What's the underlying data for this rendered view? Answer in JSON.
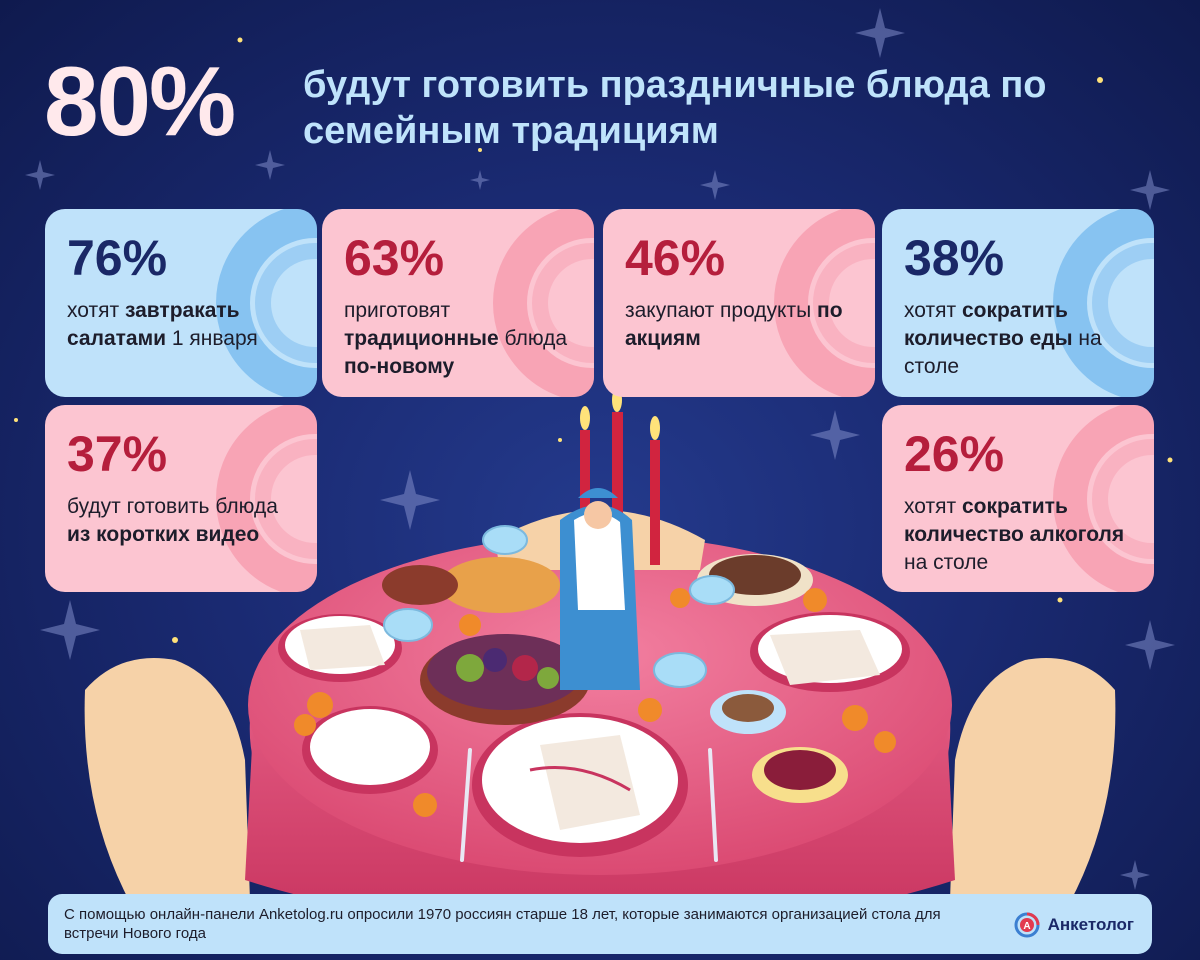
{
  "headline": {
    "percent": "80%",
    "text": "будут готовить праздничные блюда по семейным традициям"
  },
  "cards": [
    {
      "percent": "76%",
      "parts": [
        [
          "хотят ",
          false
        ],
        [
          "завтракать салатами",
          true
        ],
        [
          " 1 января",
          false
        ]
      ]
    },
    {
      "percent": "63%",
      "parts": [
        [
          "приготовят ",
          false
        ],
        [
          "традиционные",
          true
        ],
        [
          " блюда ",
          false
        ],
        [
          "по-новому",
          true
        ]
      ]
    },
    {
      "percent": "46%",
      "parts": [
        [
          "закупают продукты ",
          false
        ],
        [
          "по акциям",
          true
        ]
      ]
    },
    {
      "percent": "38%",
      "parts": [
        [
          "хотят ",
          false
        ],
        [
          "сократить количество еды",
          true
        ],
        [
          " на столе",
          false
        ]
      ]
    },
    {
      "percent": "37%",
      "parts": [
        [
          "будут готовить блюда ",
          false
        ],
        [
          "из коротких видео",
          true
        ]
      ]
    },
    {
      "percent": "26%",
      "parts": [
        [
          "хотят ",
          false
        ],
        [
          "сократить количество алкоголя",
          true
        ],
        [
          " на столе",
          false
        ]
      ]
    }
  ],
  "footer": {
    "note": "С помощью онлайн-панели Anketolog.ru опросили 1970 россиян старше 18 лет, которые занимаются организацией стола для встречи Нового года",
    "logo_text": "Анкетолог",
    "logo_icon": "anketolog-logo-icon"
  },
  "colors": {
    "background": "#1a2a72",
    "card_blue": "#bfe2fa",
    "card_pink": "#fcc5d1",
    "percent_blue": "#1a2867",
    "percent_red": "#b51e3c",
    "headline_light": "#ffe9ec",
    "headline_blue": "#bfe3fb"
  }
}
